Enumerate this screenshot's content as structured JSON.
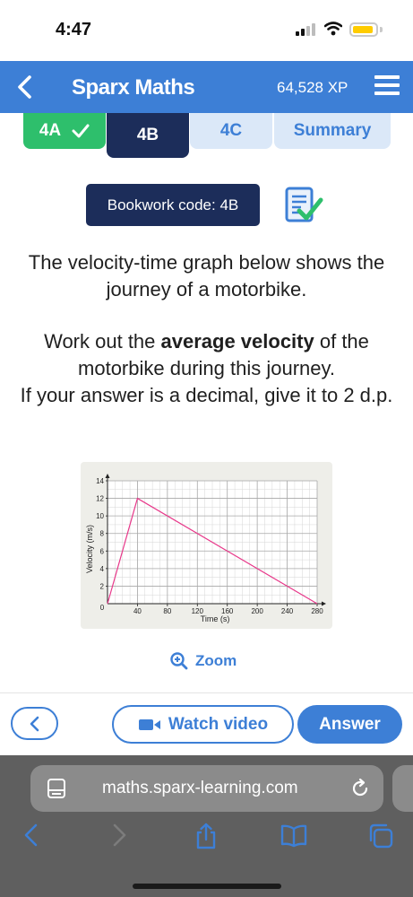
{
  "status": {
    "time": "4:47"
  },
  "header": {
    "title": "Sparx Maths",
    "xp": "64,528 XP"
  },
  "tabs": [
    {
      "label": "4A",
      "state": "complete"
    },
    {
      "label": "4B",
      "state": "active"
    },
    {
      "label": "4C",
      "state": "inactive"
    },
    {
      "label": "Summary",
      "state": "inactive"
    }
  ],
  "bookwork": {
    "label": "Bookwork code: 4B"
  },
  "question": {
    "intro": "The velocity-time graph below shows the journey of a motorbike.",
    "prompt_before": "Work out the ",
    "prompt_bold": "average velocity",
    "prompt_after": " of the motorbike during this journey.",
    "instruction": "If your answer is a decimal, give it to 2 d.p."
  },
  "chart_data": {
    "type": "line",
    "xlabel": "Time (s)",
    "ylabel": "Velocity (m/s)",
    "xlim": [
      0,
      280
    ],
    "ylim": [
      0,
      14
    ],
    "x_ticks": [
      0,
      40,
      80,
      120,
      160,
      200,
      240,
      280
    ],
    "y_ticks": [
      2,
      4,
      6,
      8,
      10,
      12,
      14
    ],
    "grid": true,
    "series": [
      {
        "x": [
          0,
          40,
          280
        ],
        "y": [
          0,
          12,
          0
        ],
        "color": "#e8388a"
      }
    ]
  },
  "zoom": {
    "label": "Zoom"
  },
  "actions": {
    "watch_video": "Watch video",
    "answer": "Answer"
  },
  "browser": {
    "url": "maths.sparx-learning.com"
  },
  "colors": {
    "brand": "#3d7fd6",
    "navy": "#1c2d5a",
    "green": "#2ebf6c",
    "line": "#e8388a"
  }
}
